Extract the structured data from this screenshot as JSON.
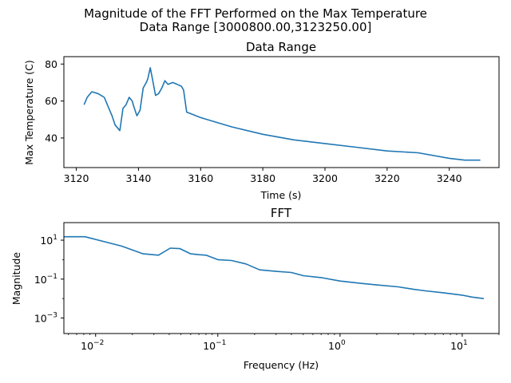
{
  "figure": {
    "suptitle_line1": "Magnitude of the FFT Performed on the Max Temperature",
    "suptitle_line2": "Data Range [3000800.00,3123250.00]"
  },
  "chart_data": [
    {
      "type": "line",
      "title": "Data Range",
      "xlabel": "Time (s)",
      "ylabel": "Max Temperature (C)",
      "xlim": [
        3116,
        3256
      ],
      "ylim": [
        24,
        84
      ],
      "xticks": [
        3120,
        3140,
        3160,
        3180,
        3200,
        3220,
        3240
      ],
      "xtick_labels": [
        "3120",
        "3140",
        "3160",
        "3180",
        "3200",
        "3220",
        "3240"
      ],
      "yticks": [
        40,
        60,
        80
      ],
      "ytick_labels": [
        "40",
        "60",
        "80"
      ],
      "grid": false,
      "color": "#1f77b4",
      "x": [
        3122.5,
        3123.5,
        3125,
        3127,
        3129,
        3130.5,
        3131.5,
        3132.5,
        3133.5,
        3134,
        3135,
        3136,
        3137,
        3138,
        3138.5,
        3139.5,
        3140.5,
        3141.5,
        3142.5,
        3143,
        3143.8,
        3144.5,
        3145.5,
        3146.5,
        3147.5,
        3148.5,
        3149.5,
        3151,
        3152.5,
        3153.8,
        3154.5,
        3155.5,
        3160,
        3170,
        3180,
        3190,
        3200,
        3210,
        3220,
        3230,
        3240,
        3245,
        3250
      ],
      "y": [
        58,
        62,
        65,
        64,
        62,
        56,
        52,
        47,
        45,
        44,
        56,
        58,
        62,
        60,
        57,
        52,
        55,
        67,
        70,
        72,
        78,
        72,
        63,
        64,
        67,
        71,
        69,
        70,
        69,
        68,
        66,
        54,
        51,
        46,
        42,
        39,
        37,
        35,
        33,
        32,
        29,
        28,
        28
      ]
    },
    {
      "type": "line",
      "title": "FFT",
      "xlabel": "Frequency (Hz)",
      "ylabel": "Magnitude",
      "x_scale": "log",
      "y_scale": "log",
      "xlim": [
        0.0055,
        20
      ],
      "ylim": [
        0.00016,
        80
      ],
      "xtick_labels": [
        "10",
        "10",
        "10",
        "10"
      ],
      "xtick_exponents": [
        "−2",
        "−1",
        "0",
        "1"
      ],
      "ytick_labels": [
        "10",
        "10",
        "10"
      ],
      "ytick_exponents": [
        "−3",
        "−1",
        "1"
      ],
      "grid": false,
      "color": "#1f77b4",
      "x": [
        0.0055,
        0.0082,
        0.0163,
        0.0245,
        0.0327,
        0.0408,
        0.049,
        0.06,
        0.07,
        0.08,
        0.1,
        0.13,
        0.17,
        0.22,
        0.3,
        0.4,
        0.5,
        0.7,
        1,
        1.5,
        2,
        3,
        4,
        5,
        7,
        10,
        12,
        15
      ],
      "y": [
        15,
        15,
        5,
        2,
        1.7,
        3.9,
        3.7,
        2,
        1.8,
        1.7,
        1.0,
        0.9,
        0.6,
        0.3,
        0.25,
        0.22,
        0.15,
        0.12,
        0.08,
        0.06,
        0.05,
        0.04,
        0.03,
        0.025,
        0.02,
        0.015,
        0.012,
        0.01
      ]
    }
  ]
}
